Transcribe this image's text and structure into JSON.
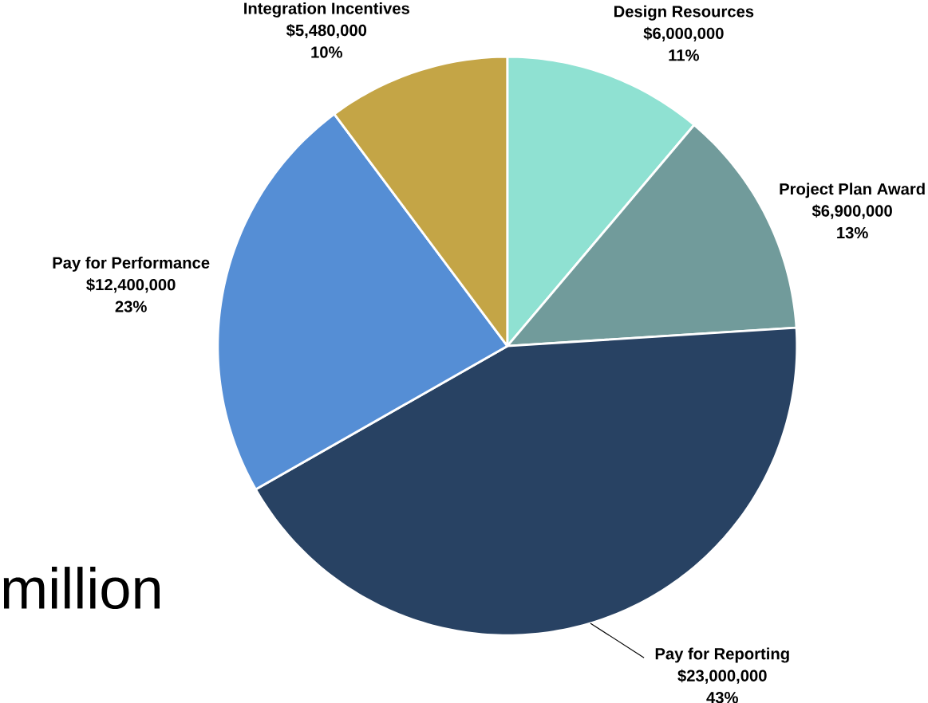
{
  "chart_data": {
    "type": "pie",
    "categories": [
      "Design Resources",
      "Project Plan Award",
      "Pay for Reporting",
      "Pay for Performance",
      "Integration Incentives"
    ],
    "values": [
      6000000,
      6900000,
      23000000,
      12400000,
      5480000
    ],
    "colors": [
      "#8fe1d2",
      "#719b9b",
      "#284263",
      "#558ed5",
      "#c4a546"
    ],
    "value_labels": [
      "$6,000,000",
      "$6,900,000",
      "$23,000,000",
      "$12,400,000",
      "$5,480,000"
    ],
    "annotations": [
      "11%",
      "13%",
      "43%",
      "23%",
      "10%",
      "million"
    ]
  }
}
